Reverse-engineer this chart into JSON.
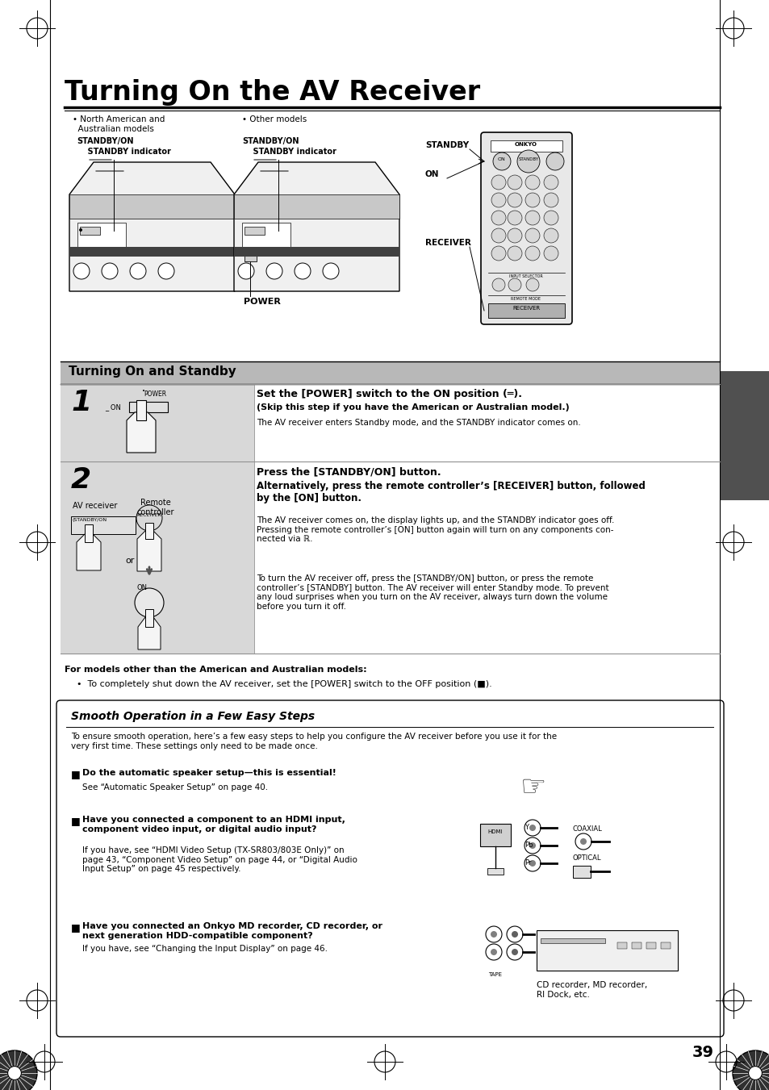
{
  "title": "Turning On the AV Receiver",
  "page_number": "39",
  "bg_color": "#ffffff",
  "section1_header": "Turning On and Standby",
  "step1_num": "1",
  "step1_title": "Set the [POWER] switch to the ON position (═).",
  "step1_bold": "(Skip this step if you have the American or Australian model.)",
  "step1_text": "The AV receiver enters Standby mode, and the STANDBY indicator comes on.",
  "step2_num": "2",
  "step2_title": "Press the [STANDBY/ON] button.",
  "step2_alt": "Alternatively, press the remote controller’s [RECEIVER] button, followed\nby the [ON] button.",
  "step2_text1": "The AV receiver comes on, the display lights up, and the STANDBY indicator goes off.\nPressing the remote controller’s [ON] button again will turn on any components con-\nnected via ℝ.",
  "step2_text2": "To turn the AV receiver off, press the [STANDBY/ON] button, or press the remote\ncontroller’s [STANDBY] button. The AV receiver will enter Standby mode. To prevent\nany loud surprises when you turn on the AV receiver, always turn down the volume\nbefore you turn it off.",
  "note_bold": "For models other than the American and Australian models:",
  "note_bullet": "To completely shut down the AV receiver, set the [POWER] switch to the OFF position (■).",
  "section2_header": "Smooth Operation in a Few Easy Steps",
  "section2_intro": "To ensure smooth operation, here’s a few easy steps to help you configure the AV receiver before you use it for the\nvery first time. These settings only need to be made once.",
  "bullet1_bold": "Do the automatic speaker setup—this is essential!",
  "bullet1_text": "See “Automatic Speaker Setup” on page 40.",
  "bullet2_bold": "Have you connected a component to an HDMI input,\ncomponent video input, or digital audio input?",
  "bullet2_text": "If you have, see “HDMI Video Setup (TX-SR803/803E Only)” on\npage 43, “Component Video Setup” on page 44, or “Digital Audio\nInput Setup” on page 45 respectively.",
  "bullet3_bold": "Have you connected an Onkyo MD recorder, CD recorder, or\nnext generation HDD-compatible component?",
  "bullet3_text": "If you have, see “Changing the Input Display” on page 46.",
  "cd_label": "CD recorder, MD recorder,\nRI Dock, etc.",
  "label_north": "• North American and\n  Australian models",
  "label_other": "• Other models",
  "label_standby_on1": "STANDBY/ON",
  "label_standby_ind1": "    STANDBY indicator",
  "label_standby_on2": "STANDBY/ON",
  "label_standby_ind2": "    STANDBY indicator",
  "label_standby": "STANDBY",
  "label_on": "ON",
  "label_receiver": "RECEIVER",
  "label_power": "POWER",
  "label_av_receiver": "AV receiver",
  "label_remote": "Remote\ncontroller",
  "label_or": "or",
  "label_on2": "ON"
}
